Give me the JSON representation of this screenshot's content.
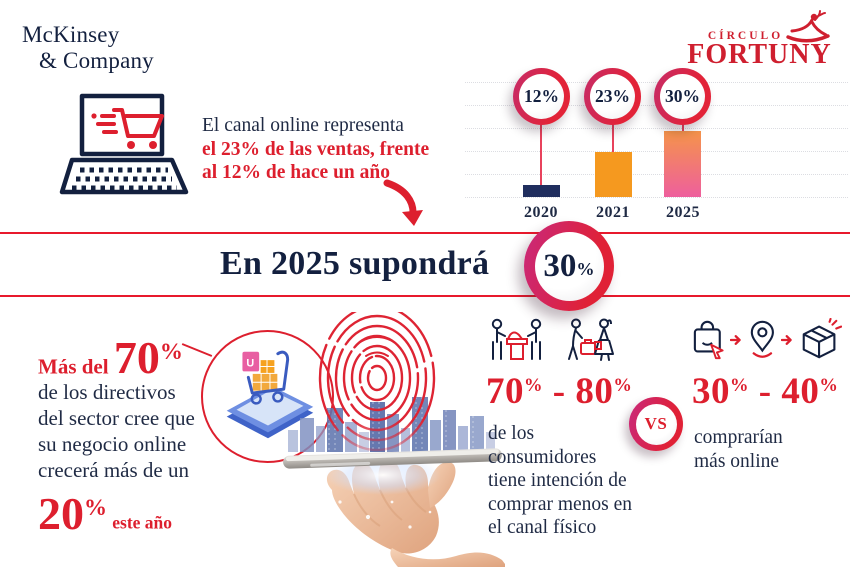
{
  "colors": {
    "navy": "#1f2a44",
    "red": "#dd1f2e",
    "orange": "#f5991f",
    "pink": "#ee5f9d",
    "band_line": "#e8192c",
    "badge_ring_left": "#c62c68",
    "badge_ring_right": "#e22338"
  },
  "header": {
    "mckinsey": {
      "line1": "McKinsey",
      "line2": "& Company"
    },
    "fortuny": {
      "top": "CÍRCULO",
      "bottom": "FORTUNY"
    }
  },
  "intro": {
    "line1": "El canal online representa",
    "line2": "el 23% de las ventas, frente",
    "line3": "al 12% de hace un año"
  },
  "chart_data": {
    "type": "bar",
    "categories": [
      "2020",
      "2021",
      "2025"
    ],
    "values": [
      12,
      23,
      30
    ],
    "value_labels": [
      "12%",
      "23%",
      "30%"
    ],
    "bar_colors": [
      "#202e5e",
      "#f5991f",
      "gradient #f5944a→#ee5f9d"
    ],
    "title": "",
    "xlabel": "",
    "ylabel": "",
    "ylim": [
      0,
      35
    ],
    "grid": "dotted horizontal gridlines",
    "legend": "none",
    "annotations": "each bar topped by circular badge showing percentage, connected by red stem to dot at bar base"
  },
  "banner": {
    "text": "En 2025 supondrá",
    "value": "30",
    "unit": "%"
  },
  "directors": {
    "lead": "Más del",
    "value1": "70",
    "unit1": "%",
    "lines": [
      "de los directivos",
      "del sector cree que",
      "su negocio online",
      "crecerá más de un"
    ],
    "value2": "20",
    "unit2": "%",
    "tail": "este año"
  },
  "physical": {
    "from": "70",
    "dash": "-",
    "to": "80",
    "unit": "%",
    "lines": [
      "de los",
      "consumidores",
      "tiene intención de",
      "comprar menos en",
      "el canal físico"
    ]
  },
  "vs": {
    "label": "VS"
  },
  "online": {
    "from": "30",
    "dash": "-",
    "to": "40",
    "unit": "%",
    "lines": [
      "comprarían",
      "más online"
    ]
  }
}
